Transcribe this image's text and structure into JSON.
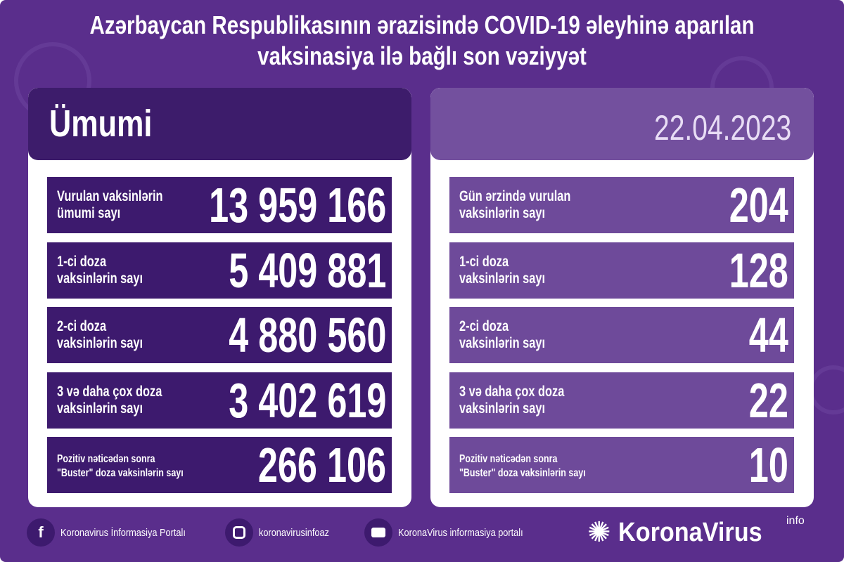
{
  "title": {
    "line1": "Azərbaycan Respublikasının ərazisində COVID-19 əleyhinə aparılan",
    "line2": "vaksinasiya ilə bağlı son vəziyyət"
  },
  "colors": {
    "background": "#5a2e8c",
    "left_rows": "#3d1a6e",
    "right_rows": "#6e4a9a",
    "right_header": "#73509e"
  },
  "total": {
    "heading": "Ümumi",
    "rows": [
      {
        "label1": "Vurulan vaksinlərin",
        "label2": "ümumi sayı",
        "value": "13 959 166"
      },
      {
        "label1": "1-ci doza",
        "label2": "vaksinlərin sayı",
        "value": "5 409 881"
      },
      {
        "label1": "2-ci doza",
        "label2": "vaksinlərin sayı",
        "value": "4 880 560"
      },
      {
        "label1": "3 və daha çox doza",
        "label2": "vaksinlərin sayı",
        "value": "3 402 619"
      },
      {
        "label1": "Pozitiv nəticədən sonra",
        "label2": "\"Buster\" doza vaksinlərin sayı",
        "value": "266 106"
      }
    ]
  },
  "daily": {
    "date": "22.04.2023",
    "rows": [
      {
        "label1": "Gün ərzində vurulan",
        "label2": "vaksinlərin sayı",
        "value": "204"
      },
      {
        "label1": "1-ci doza",
        "label2": "vaksinlərin sayı",
        "value": "128"
      },
      {
        "label1": "2-ci doza",
        "label2": "vaksinlərin sayı",
        "value": "44"
      },
      {
        "label1": "3 və daha çox doza",
        "label2": "vaksinlərin sayı",
        "value": "22"
      },
      {
        "label1": "Pozitiv nəticədən sonra",
        "label2": "\"Buster\" doza vaksinlərin sayı",
        "value": "10"
      }
    ]
  },
  "footer": {
    "facebook": {
      "icon": "facebook-icon",
      "text": "Koronavirus İnformasiya Portalı"
    },
    "instagram": {
      "icon": "instagram-icon",
      "text": "koronavirusinfoaz"
    },
    "youtube": {
      "icon": "youtube-icon",
      "text": "KoronaVirus informasiya portalı"
    },
    "brand": {
      "name": "KoronaVirus",
      "sup": "info"
    }
  }
}
